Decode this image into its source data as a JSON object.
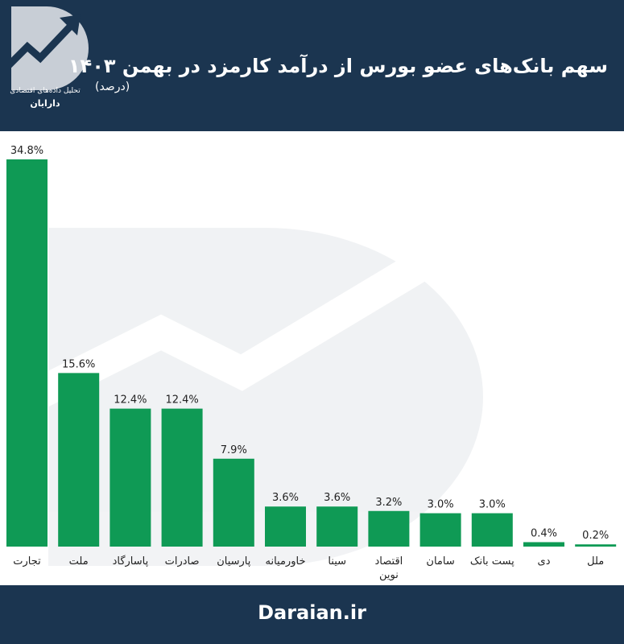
{
  "header": {
    "title": "سهم بانک‌های عضو بورس از درآمد کارمزد در بهمن ۱۴۰۳",
    "unit": "(درصد)",
    "logo_line1": "تحلیل داده‌های اقتصادی",
    "logo_line2": "دارایان"
  },
  "footer": {
    "site": "Daraian.ir"
  },
  "colors": {
    "header_bg": "#1b3550",
    "bar": "#0f9a55",
    "text": "#222222"
  },
  "chart_data": {
    "type": "bar",
    "title": "سهم بانک‌های عضو بورس از درآمد کارمزد در بهمن ۱۴۰۳",
    "ylabel": "",
    "xlabel": "",
    "ylim": [
      0,
      34.8
    ],
    "grid": false,
    "categories": [
      "تجارت",
      "ملت",
      "پاسارگاد",
      "صادرات",
      "پارسیان",
      "خاورمیانه",
      "سینا",
      "اقتصاد نوین",
      "سامان",
      "پست بانک",
      "دی",
      "ملل"
    ],
    "values": [
      34.8,
      15.6,
      12.4,
      12.4,
      7.9,
      3.6,
      3.6,
      3.2,
      3.0,
      3.0,
      0.4,
      0.2
    ],
    "value_labels": [
      "34.8%",
      "15.6%",
      "12.4%",
      "12.4%",
      "7.9%",
      "3.6%",
      "3.6%",
      "3.2%",
      "3.0%",
      "3.0%",
      "0.4%",
      "0.2%"
    ]
  }
}
